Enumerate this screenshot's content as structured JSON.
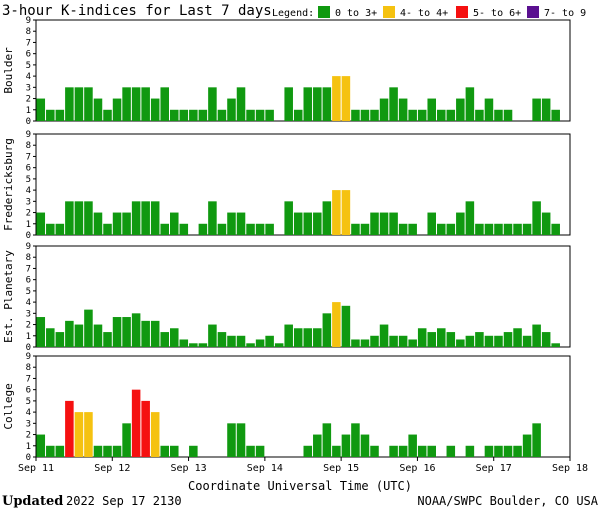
{
  "title": "3-hour K-indices for Last 7 days",
  "legend": {
    "label": "Legend:",
    "entries": [
      {
        "label": "0 to 3+",
        "color": "#109910"
      },
      {
        "label": "4- to 4+",
        "color": "#f5c210"
      },
      {
        "label": "5- to 6+",
        "color": "#f51010"
      },
      {
        "label": "7- to 9",
        "color": "#5a1090"
      }
    ]
  },
  "chart_data": {
    "type": "bar",
    "ylim": [
      0,
      9
    ],
    "yticks": [
      "0",
      "1",
      "2",
      "3",
      "4",
      "5",
      "6",
      "7",
      "8",
      "9"
    ],
    "x_labels": [
      "Sep 11",
      "Sep 12",
      "Sep 13",
      "Sep 14",
      "Sep 15",
      "Sep 16",
      "Sep 17",
      "Sep 18"
    ],
    "xlabel": "Coordinate Universal Time (UTC)",
    "panels": [
      {
        "name": "Boulder",
        "values": [
          2,
          1,
          1,
          3,
          3,
          3,
          2,
          1,
          2,
          3,
          3,
          3,
          2,
          3,
          1,
          1,
          1,
          1,
          3,
          1,
          2,
          3,
          1,
          1,
          1,
          0,
          3,
          1,
          3,
          3,
          3,
          4,
          4,
          1,
          1,
          1,
          2,
          3,
          2,
          1,
          1,
          2,
          1,
          1,
          2,
          3,
          1,
          2,
          1,
          1,
          0,
          0,
          2,
          2,
          1,
          0
        ]
      },
      {
        "name": "Fredericksburg",
        "values": [
          2,
          1,
          1,
          3,
          3,
          3,
          2,
          1,
          2,
          2,
          3,
          3,
          3,
          1,
          2,
          1,
          0,
          1,
          3,
          1,
          2,
          2,
          1,
          1,
          1,
          0,
          3,
          2,
          2,
          2,
          3,
          4,
          4,
          1,
          1,
          2,
          2,
          2,
          1,
          1,
          0,
          2,
          1,
          1,
          2,
          3,
          1,
          1,
          1,
          1,
          1,
          1,
          3,
          2,
          1,
          0
        ]
      },
      {
        "name": "Est. Planetary",
        "values": [
          2.67,
          1.67,
          1.33,
          2.33,
          2,
          3.33,
          2,
          1.33,
          2.67,
          2.67,
          3,
          2.33,
          2.33,
          1.33,
          1.67,
          0.67,
          0.33,
          0.33,
          2,
          1.33,
          1,
          1,
          0.33,
          0.67,
          1,
          0.33,
          2,
          1.67,
          1.67,
          1.67,
          3,
          4,
          3.67,
          0.67,
          0.67,
          1,
          2,
          1,
          1,
          0.67,
          1.67,
          1.33,
          1.67,
          1.33,
          0.67,
          1,
          1.33,
          1,
          1,
          1.33,
          1.67,
          1,
          2,
          1.33,
          0.33,
          0
        ]
      },
      {
        "name": "College",
        "values": [
          2,
          1,
          1,
          5,
          4,
          4,
          1,
          1,
          1,
          3,
          6,
          5,
          4,
          1,
          1,
          0,
          1,
          0,
          0,
          0,
          3,
          3,
          1,
          1,
          0,
          0,
          0,
          0,
          1,
          2,
          3,
          1,
          2,
          3,
          2,
          1,
          0,
          1,
          1,
          2,
          1,
          1,
          0,
          1,
          0,
          1,
          0,
          1,
          1,
          1,
          1,
          2,
          3,
          0,
          0,
          0
        ]
      }
    ]
  },
  "footer": {
    "updated_label": "Updated",
    "updated_value": "2022 Sep 17 2130",
    "source": "NOAA/SWPC Boulder, CO USA"
  }
}
